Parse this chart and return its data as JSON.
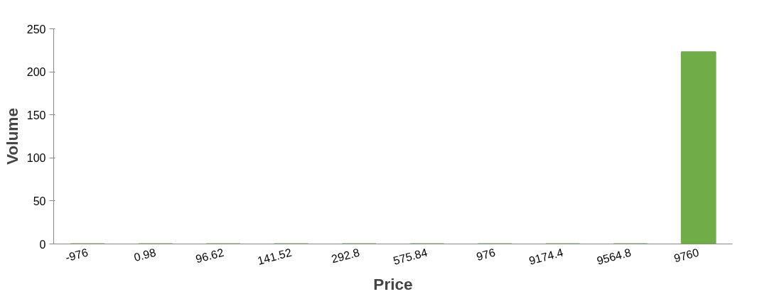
{
  "chart_data": {
    "type": "bar",
    "xlabel": "Price",
    "ylabel": "Volume",
    "categories": [
      "-976",
      "0.98",
      "96.62",
      "141.52",
      "292.8",
      "575.84",
      "976",
      "9174.4",
      "9564.8",
      "9760"
    ],
    "values": [
      0,
      0,
      0,
      0,
      0,
      0,
      0,
      0,
      0,
      223
    ],
    "color": "#70ad47",
    "ylim": [
      0,
      250
    ],
    "yticks": [
      0,
      50,
      100,
      150,
      200,
      250
    ],
    "grid": false
  }
}
